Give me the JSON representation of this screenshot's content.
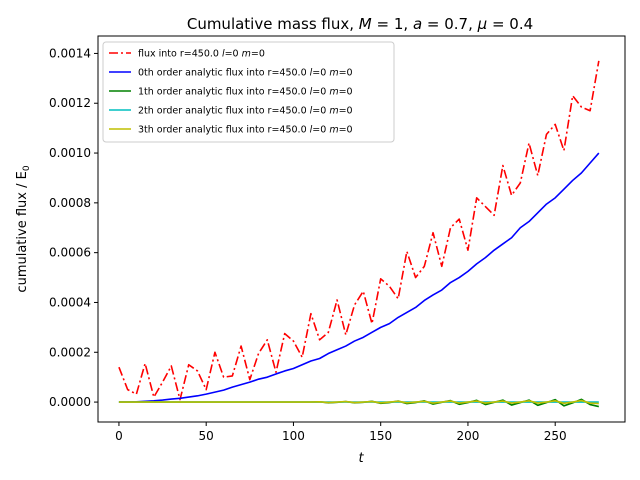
{
  "chart_data": {
    "type": "line",
    "title": "Cumulative mass flux, M = 1, a = 0.7, μ = 0.4",
    "title_parts": {
      "prefix": "Cumulative mass flux, ",
      "M_sym": "M",
      "M_val": " = 1, ",
      "a_sym": "a",
      "a_val": " = 0.7, ",
      "mu_sym": "μ",
      "mu_val": " = 0.4"
    },
    "xlabel": "t",
    "ylabel": "cumulative flux / E",
    "ylabel_sub": "0",
    "xlim": [
      -12,
      290
    ],
    "ylim": [
      -8e-05,
      0.00147
    ],
    "xticks": [
      0,
      50,
      100,
      150,
      200,
      250
    ],
    "xtick_labels": [
      "0",
      "50",
      "100",
      "150",
      "200",
      "250"
    ],
    "yticks": [
      0,
      0.0002,
      0.0004,
      0.0006,
      0.0008,
      0.001,
      0.0012,
      0.0014
    ],
    "ytick_labels": [
      "0.0000",
      "0.0002",
      "0.0004",
      "0.0006",
      "0.0008",
      "0.0010",
      "0.0012",
      "0.0014"
    ],
    "grid": false,
    "legend_position": "top-left",
    "series": [
      {
        "name": "flux into r=450.0 l=0 m=0",
        "legend_prefix": "flux into r=450.0 ",
        "color": "#ff0000",
        "style": "dashdot",
        "x": [
          0,
          5,
          10,
          15,
          20,
          25,
          30,
          35,
          40,
          45,
          50,
          55,
          60,
          65,
          70,
          75,
          80,
          85,
          90,
          95,
          100,
          105,
          110,
          115,
          120,
          125,
          130,
          135,
          140,
          145,
          150,
          155,
          160,
          165,
          170,
          175,
          180,
          185,
          190,
          195,
          200,
          205,
          210,
          215,
          220,
          225,
          230,
          235,
          240,
          245,
          250,
          255,
          260,
          265,
          270,
          275
        ],
        "y": [
          0.00014,
          5e-05,
          3.2e-05,
          0.000155,
          2e-05,
          8e-05,
          0.000145,
          1e-05,
          0.00015,
          0.000125,
          5e-05,
          0.0002,
          0.0001,
          0.000105,
          0.000225,
          9e-05,
          0.000195,
          0.00025,
          0.00012,
          0.000275,
          0.000245,
          0.00018,
          0.000355,
          0.00025,
          0.00028,
          0.00041,
          0.00027,
          0.00039,
          0.000445,
          0.000315,
          0.000495,
          0.000465,
          0.000415,
          0.000605,
          0.0005,
          0.000545,
          0.00068,
          0.000545,
          0.0007,
          0.000735,
          0.00061,
          0.00082,
          0.000785,
          0.00075,
          0.00095,
          0.00083,
          0.00088,
          0.00104,
          0.00091,
          0.001075,
          0.001115,
          0.00101,
          0.00123,
          0.001185,
          0.00117,
          0.00137
        ]
      },
      {
        "name": "0th order analytic flux into r=450.0 l=0 m=0",
        "legend_prefix": "0th order analytic flux into r=450.0 ",
        "color": "#0000ff",
        "style": "solid",
        "x": [
          0,
          5,
          10,
          15,
          20,
          25,
          30,
          35,
          40,
          45,
          50,
          55,
          60,
          65,
          70,
          75,
          80,
          85,
          90,
          95,
          100,
          105,
          110,
          115,
          120,
          125,
          130,
          135,
          140,
          145,
          150,
          155,
          160,
          165,
          170,
          175,
          180,
          185,
          190,
          195,
          200,
          205,
          210,
          215,
          220,
          225,
          230,
          235,
          240,
          245,
          250,
          255,
          260,
          265,
          270,
          275
        ],
        "y": [
          0.0,
          0.0,
          1e-06,
          3e-06,
          5e-06,
          8e-06,
          1.2e-05,
          1.5e-05,
          2e-05,
          2.5e-05,
          3.2e-05,
          4e-05,
          4.8e-05,
          6e-05,
          7e-05,
          8e-05,
          9.2e-05,
          0.0001,
          0.000113,
          0.000125,
          0.000135,
          0.00015,
          0.000165,
          0.000175,
          0.000195,
          0.00021,
          0.000225,
          0.000245,
          0.00026,
          0.00028,
          0.0003,
          0.000315,
          0.00034,
          0.00036,
          0.00038,
          0.000408,
          0.00043,
          0.00045,
          0.00048,
          0.0005,
          0.000525,
          0.000555,
          0.00058,
          0.00061,
          0.000635,
          0.00066,
          0.0007,
          0.000725,
          0.00076,
          0.000795,
          0.00082,
          0.000855,
          0.00089,
          0.00092,
          0.00096,
          0.001
        ]
      },
      {
        "name": "1th order analytic flux into r=450.0 l=0 m=0",
        "legend_prefix": "1th order analytic flux into r=450.0 ",
        "color": "#008000",
        "style": "solid",
        "x": [
          0,
          5,
          10,
          15,
          20,
          25,
          30,
          35,
          40,
          45,
          50,
          55,
          60,
          65,
          70,
          75,
          80,
          85,
          90,
          95,
          100,
          105,
          110,
          115,
          120,
          125,
          130,
          135,
          140,
          145,
          150,
          155,
          160,
          165,
          170,
          175,
          180,
          185,
          190,
          195,
          200,
          205,
          210,
          215,
          220,
          225,
          230,
          235,
          240,
          245,
          250,
          255,
          260,
          265,
          270,
          275
        ],
        "y": [
          0,
          0,
          0,
          0,
          0,
          0,
          0,
          0,
          0,
          0,
          0,
          0,
          0,
          0,
          0,
          0,
          0,
          0,
          0,
          0,
          0,
          0,
          0,
          1e-06,
          -3e-06,
          -1e-06,
          2e-06,
          -3e-06,
          -1e-06,
          3e-06,
          -5e-06,
          -2e-06,
          4e-06,
          -6e-06,
          -2e-06,
          5e-06,
          -8e-06,
          -1e-06,
          6e-06,
          -9e-06,
          -2e-06,
          7e-06,
          -1e-05,
          -1e-06,
          8e-06,
          -1.2e-05,
          -2e-06,
          8e-06,
          -1.3e-05,
          -2e-06,
          1e-05,
          -1.5e-05,
          -3e-06,
          1.1e-05,
          -1e-05,
          -1.8e-05
        ]
      },
      {
        "name": "2th order analytic flux into r=450.0 l=0 m=0",
        "legend_prefix": "2th order analytic flux into r=450.0 ",
        "color": "#00bfbf",
        "style": "solid",
        "x": [
          0,
          25,
          50,
          75,
          100,
          125,
          150,
          175,
          200,
          225,
          250,
          275
        ],
        "y": [
          0,
          0,
          0,
          0,
          0,
          0,
          0,
          0,
          0,
          0,
          0,
          0
        ]
      },
      {
        "name": "3th order analytic flux into r=450.0 l=0 m=0",
        "legend_prefix": "3th order analytic flux into r=450.0 ",
        "color": "#bfbf00",
        "style": "solid",
        "x": [
          0,
          5,
          10,
          15,
          20,
          25,
          30,
          35,
          40,
          45,
          50,
          55,
          60,
          65,
          70,
          75,
          80,
          85,
          90,
          95,
          100,
          105,
          110,
          115,
          120,
          125,
          130,
          135,
          140,
          145,
          150,
          155,
          160,
          165,
          170,
          175,
          180,
          185,
          190,
          195,
          200,
          205,
          210,
          215,
          220,
          225,
          230,
          235,
          240,
          245,
          250,
          255,
          260,
          265,
          270,
          275
        ],
        "y": [
          0,
          0,
          0,
          0,
          0,
          0,
          0,
          0,
          0,
          0,
          0,
          0,
          0,
          0,
          0,
          0,
          0,
          0,
          0,
          0,
          0,
          0,
          0,
          1e-06,
          -2e-06,
          0,
          2e-06,
          -2e-06,
          0,
          2e-06,
          -3e-06,
          0,
          3e-06,
          -3e-06,
          0,
          3e-06,
          -4e-06,
          0,
          4e-06,
          -4e-06,
          0,
          4e-06,
          -4e-06,
          0,
          4e-06,
          -4e-06,
          0,
          5e-06,
          -4e-06,
          0,
          5e-06,
          -5e-06,
          0,
          6e-06,
          -4e-06,
          -6e-06
        ]
      }
    ]
  }
}
